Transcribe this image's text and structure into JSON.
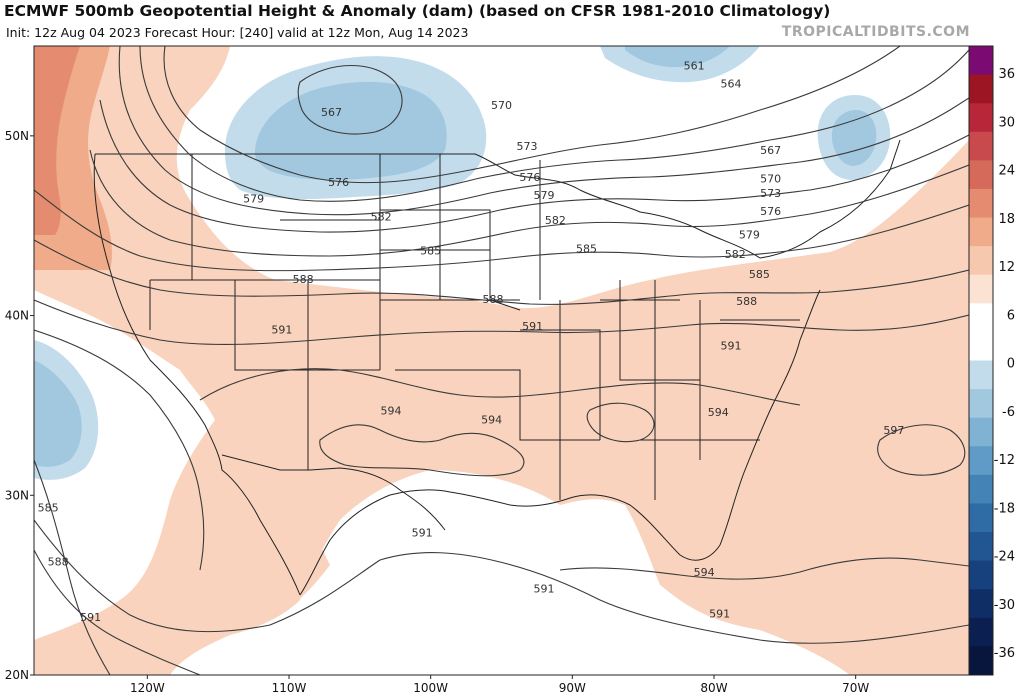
{
  "header": {
    "title": "ECMWF 500mb Geopotential Height & Anomaly (dam) (based on CFSR 1981-2010 Climatology)",
    "subtitle": "Init: 12z Aug 04 2023   Forecast Hour: [240]   valid at 12z Mon, Aug 14 2023",
    "brand": "TROPICALTIDBITS.COM"
  },
  "map": {
    "lon_range": [
      -128,
      -62
    ],
    "lat_range": [
      20,
      55
    ],
    "lat_labels": [
      {
        "lat": 50,
        "text": "50N"
      },
      {
        "lat": 40,
        "text": "40N"
      },
      {
        "lat": 30,
        "text": "30N"
      },
      {
        "lat": 20,
        "text": "20N"
      }
    ],
    "lon_labels": [
      {
        "lon": -120,
        "text": "120W"
      },
      {
        "lon": -110,
        "text": "110W"
      },
      {
        "lon": -100,
        "text": "100W"
      },
      {
        "lon": -90,
        "text": "90W"
      },
      {
        "lon": -80,
        "text": "80W"
      },
      {
        "lon": -70,
        "text": "70W"
      }
    ],
    "contour_labels": [
      {
        "text": "567",
        "lon": -107,
        "lat": 51.1
      },
      {
        "text": "576",
        "lon": -106.5,
        "lat": 47.2
      },
      {
        "text": "579",
        "lon": -112.5,
        "lat": 46.3
      },
      {
        "text": "582",
        "lon": -103.5,
        "lat": 45.3
      },
      {
        "text": "585",
        "lon": -100,
        "lat": 43.4
      },
      {
        "text": "588",
        "lon": -109,
        "lat": 41.8
      },
      {
        "text": "591",
        "lon": -110.5,
        "lat": 39.0
      },
      {
        "text": "594",
        "lon": -102.8,
        "lat": 34.5
      },
      {
        "text": "594",
        "lon": -95.7,
        "lat": 34.0
      },
      {
        "text": "591",
        "lon": -92.8,
        "lat": 39.2
      },
      {
        "text": "588",
        "lon": -95.6,
        "lat": 40.7
      },
      {
        "text": "585",
        "lon": -89.0,
        "lat": 43.5
      },
      {
        "text": "582",
        "lon": -91.2,
        "lat": 45.1
      },
      {
        "text": "579",
        "lon": -92.0,
        "lat": 46.5
      },
      {
        "text": "576",
        "lon": -93.0,
        "lat": 47.5
      },
      {
        "text": "573",
        "lon": -93.2,
        "lat": 49.2
      },
      {
        "text": "570",
        "lon": -95.0,
        "lat": 51.5
      },
      {
        "text": "561",
        "lon": -81.4,
        "lat": 53.7
      },
      {
        "text": "564",
        "lon": -78.8,
        "lat": 52.7
      },
      {
        "text": "567",
        "lon": -76.0,
        "lat": 49.0
      },
      {
        "text": "570",
        "lon": -76.0,
        "lat": 47.4
      },
      {
        "text": "573",
        "lon": -76.0,
        "lat": 46.6
      },
      {
        "text": "576",
        "lon": -76.0,
        "lat": 45.6
      },
      {
        "text": "579",
        "lon": -77.5,
        "lat": 44.3
      },
      {
        "text": "582",
        "lon": -78.5,
        "lat": 43.2
      },
      {
        "text": "585",
        "lon": -76.8,
        "lat": 42.1
      },
      {
        "text": "588",
        "lon": -77.7,
        "lat": 40.6
      },
      {
        "text": "591",
        "lon": -78.8,
        "lat": 38.1
      },
      {
        "text": "594",
        "lon": -79.7,
        "lat": 34.4
      },
      {
        "text": "597",
        "lon": -67.3,
        "lat": 33.4
      },
      {
        "text": "594",
        "lon": -80.7,
        "lat": 25.5
      },
      {
        "text": "591",
        "lon": -79.6,
        "lat": 23.2
      },
      {
        "text": "591",
        "lon": -92.0,
        "lat": 24.6
      },
      {
        "text": "591",
        "lon": -100.6,
        "lat": 27.7
      },
      {
        "text": "591",
        "lon": -124.0,
        "lat": 23.0
      },
      {
        "text": "588",
        "lon": -126.3,
        "lat": 26.1
      },
      {
        "text": "585",
        "lon": -127.0,
        "lat": 29.1
      }
    ]
  },
  "colorbar": {
    "labels": [
      "36",
      "30",
      "24",
      "18",
      "12",
      "6",
      "0",
      "-6",
      "-12",
      "-18",
      "-24",
      "-30",
      "-36"
    ],
    "colors": [
      "#7b0b73",
      "#9c1523",
      "#b8263a",
      "#c84a4d",
      "#d66a5a",
      "#e58c70",
      "#f0ab8a",
      "#f6c8ad",
      "#fbe2d2",
      "#ffffff",
      "#ffffff",
      "#c3dcec",
      "#a2c8e0",
      "#80b2d4",
      "#5f9bc6",
      "#4383b6",
      "#2f6ba5",
      "#225692",
      "#17417c",
      "#0f2e66",
      "#0b2050",
      "#08163d"
    ]
  }
}
